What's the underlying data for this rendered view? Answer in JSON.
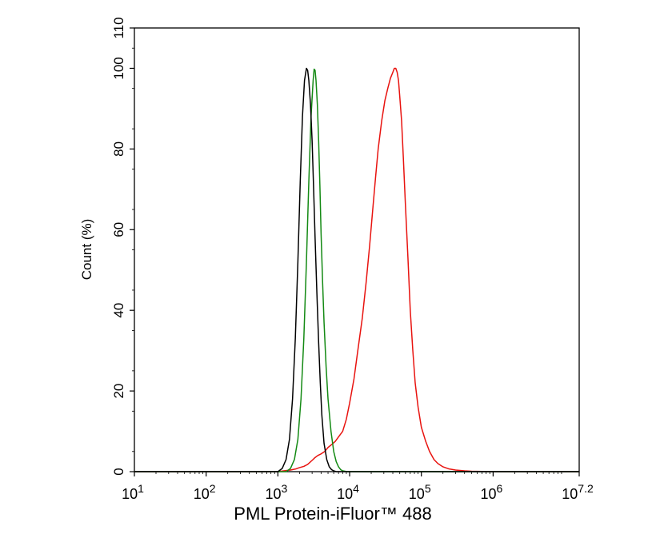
{
  "chart_data": {
    "type": "line",
    "xlabel": "PML Protein-iFluor™ 488",
    "ylabel": "Count  (%)",
    "x_scale": "log10",
    "xlim": [
      10,
      15848932
    ],
    "ylim": [
      0,
      110
    ],
    "x_ticks": [
      {
        "value": 10,
        "base": "10",
        "exp": "1"
      },
      {
        "value": 100,
        "base": "10",
        "exp": "2"
      },
      {
        "value": 1000,
        "base": "10",
        "exp": "3"
      },
      {
        "value": 10000,
        "base": "10",
        "exp": "4"
      },
      {
        "value": 100000,
        "base": "10",
        "exp": "5"
      },
      {
        "value": 1000000,
        "base": "10",
        "exp": "6"
      },
      {
        "value": 15848932,
        "base": "10",
        "exp": "7.2"
      }
    ],
    "y_ticks": [
      {
        "value": 0,
        "label": "0"
      },
      {
        "value": 20,
        "label": "20"
      },
      {
        "value": 40,
        "label": "40"
      },
      {
        "value": 60,
        "label": "60"
      },
      {
        "value": 80,
        "label": "80"
      },
      {
        "value": 100,
        "label": "100"
      },
      {
        "value": 110,
        "label": "110"
      }
    ],
    "grid": false,
    "legend": "none",
    "series": [
      {
        "color": "#e8130f",
        "x": [
          10,
          1000,
          1200,
          1500,
          1800,
          2000,
          2300,
          2600,
          3000,
          3300,
          3600,
          4000,
          4500,
          5000,
          5600,
          6300,
          7000,
          8000,
          9000,
          10000,
          11500,
          13000,
          15000,
          17000,
          19000,
          21000,
          23000,
          25000,
          28000,
          31000,
          34000,
          37000,
          40000,
          42000,
          44000,
          46000,
          48000,
          50000,
          53000,
          56000,
          60000,
          65000,
          70000,
          76000,
          82000,
          90000,
          100000,
          115000,
          130000,
          150000,
          170000,
          200000,
          240000,
          300000,
          400000,
          500000,
          700000,
          1000000,
          15848932
        ],
        "y": [
          0,
          0,
          0.2,
          0.4,
          0.7,
          1,
          1.3,
          1.8,
          2.8,
          3.5,
          4,
          4.4,
          5,
          6,
          6.7,
          7.5,
          8.6,
          10,
          13,
          17,
          23,
          30,
          38,
          47,
          56,
          65,
          73,
          80,
          87,
          92,
          95,
          97.5,
          99,
          100,
          100,
          99,
          97,
          93,
          87,
          78,
          66,
          53,
          40,
          30,
          22,
          16,
          11,
          7.5,
          5,
          3,
          2,
          1.2,
          0.7,
          0.4,
          0.2,
          0.1,
          0.05,
          0,
          0
        ]
      },
      {
        "color": "#148a14",
        "x": [
          10,
          1300,
          1500,
          1700,
          1900,
          2100,
          2300,
          2500,
          2700,
          2900,
          3100,
          3200,
          3300,
          3400,
          3550,
          3700,
          3850,
          4000,
          4200,
          4400,
          4700,
          5000,
          5500,
          6000,
          6500,
          7000,
          7500,
          8000,
          8600,
          9200,
          10000,
          15848932
        ],
        "y": [
          0,
          0,
          0.8,
          3,
          8,
          18,
          33,
          52,
          72,
          88,
          97,
          99.8,
          99.5,
          97,
          91,
          82,
          71,
          59,
          47,
          37,
          26,
          18,
          10,
          5,
          2.5,
          1.2,
          0.5,
          0.2,
          0.1,
          0,
          0,
          0
        ]
      },
      {
        "color": "#000000",
        "x": [
          10,
          1000,
          1150,
          1300,
          1450,
          1600,
          1750,
          1900,
          2050,
          2200,
          2350,
          2500,
          2600,
          2700,
          2850,
          3000,
          3150,
          3300,
          3500,
          3700,
          3900,
          4100,
          4400,
          4800,
          5200,
          5600,
          6000,
          6500,
          15848932
        ],
        "y": [
          0,
          0,
          0.8,
          3,
          8,
          18,
          33,
          52,
          72,
          88,
          97,
          100,
          99.5,
          97,
          91,
          82,
          70,
          58,
          44,
          32,
          22,
          14,
          7,
          3,
          1.2,
          0.5,
          0.2,
          0,
          0
        ]
      }
    ]
  }
}
